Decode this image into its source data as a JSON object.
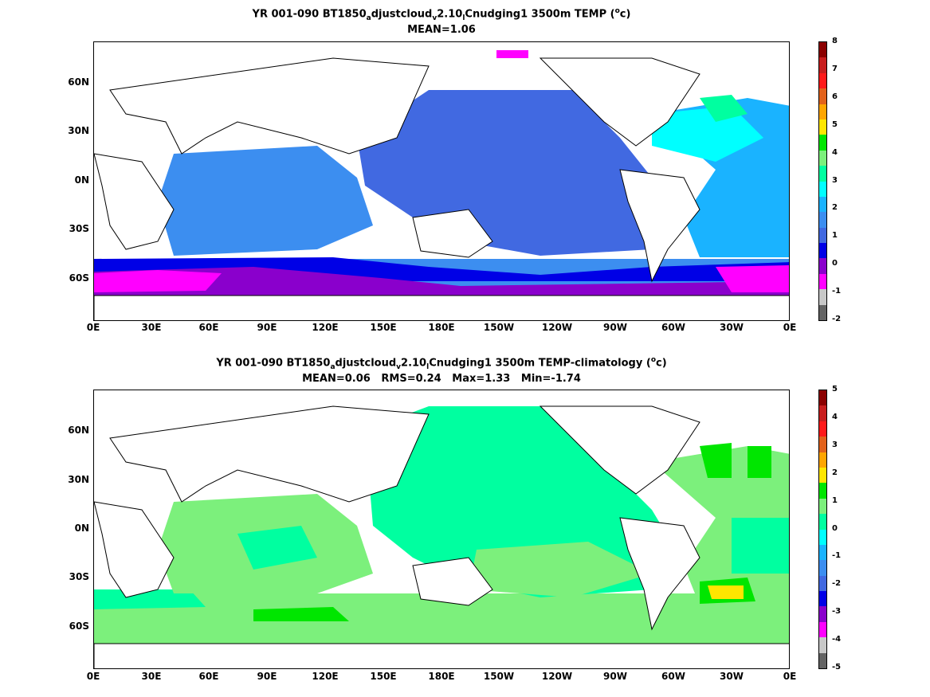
{
  "panel1": {
    "title_main": "YR 001-090 BT1850",
    "title_sub1": "a",
    "title_mid1": "djustcloud",
    "title_sub2": "v",
    "title_mid2": "2.10",
    "title_sub3": "l",
    "title_rest": "Cnudging1 3500m TEMP (",
    "title_sup": "o",
    "title_end": "c)",
    "subtitle": "MEAN=1.06",
    "colorbar": {
      "labels": [
        "8",
        "7",
        "6",
        "5",
        "4",
        "3",
        "2",
        "1",
        "0",
        "-1",
        "-2"
      ],
      "colors": [
        "#8b0000",
        "#c81e1e",
        "#ff1a1a",
        "#e2621b",
        "#ffa500",
        "#ffe600",
        "#00e600",
        "#7cf07c",
        "#00ffa0",
        "#00ffff",
        "#1ab3ff",
        "#3c8ef0",
        "#4169e1",
        "#0000e6",
        "#8a00cc",
        "#ff00ff",
        "#c8c8c8",
        "#646464"
      ]
    }
  },
  "panel2": {
    "title_main": "YR 001-090 BT1850",
    "title_sub1": "a",
    "title_mid1": "djustcloud",
    "title_sub2": "v",
    "title_mid2": "2.10",
    "title_sub3": "l",
    "title_rest": "Cnudging1 3500m TEMP-climatology (",
    "title_sup": "o",
    "title_end": "c)",
    "subtitle": "MEAN=0.06   RMS=0.24   Max=1.33   Min=-1.74",
    "colorbar": {
      "labels": [
        "5",
        "4",
        "3",
        "2",
        "1",
        "0",
        "-1",
        "-2",
        "-3",
        "-4",
        "-5"
      ],
      "colors": [
        "#8b0000",
        "#c81e1e",
        "#ff1a1a",
        "#e2621b",
        "#ffa500",
        "#ffe600",
        "#00e600",
        "#7cf07c",
        "#00ffa0",
        "#00ffff",
        "#1ab3ff",
        "#3c8ef0",
        "#4169e1",
        "#0000e6",
        "#8a00cc",
        "#ff00ff",
        "#c8c8c8",
        "#646464"
      ]
    }
  },
  "axes": {
    "lat_labels": [
      "60N",
      "30N",
      "0N",
      "30S",
      "60S"
    ],
    "lon_labels": [
      "0E",
      "30E",
      "60E",
      "90E",
      "120E",
      "150E",
      "180E",
      "150W",
      "120W",
      "90W",
      "60W",
      "30W",
      "0E"
    ]
  },
  "colors": {
    "land": "#ffffff",
    "coast": "#000000"
  }
}
